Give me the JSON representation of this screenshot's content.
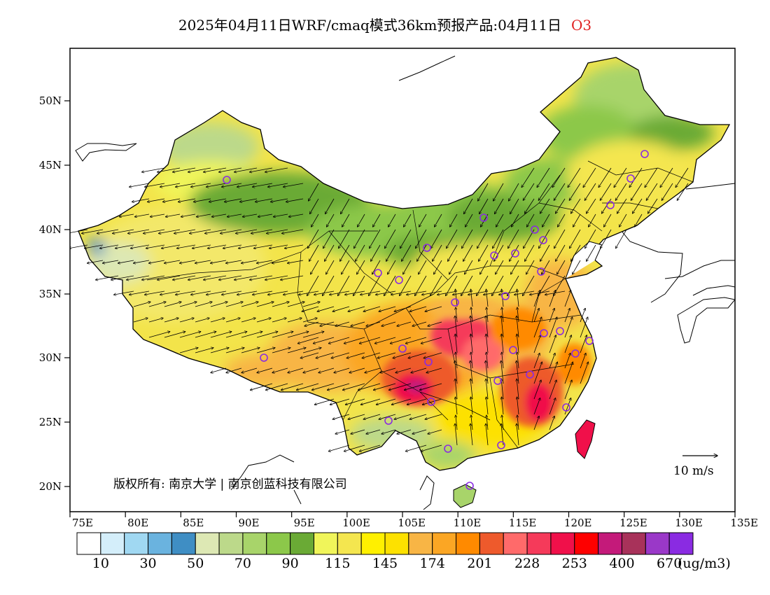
{
  "title": {
    "text": "2025年04月11日WRF/cmaq模式36km预报产品:04月11日",
    "species": "O3"
  },
  "map": {
    "lat_labels": [
      "50N",
      "45N",
      "40N",
      "35N",
      "30N",
      "25N",
      "20N"
    ],
    "lon_labels": [
      "75E",
      "80E",
      "85E",
      "90E",
      "95E",
      "100E",
      "105E",
      "110E",
      "115E",
      "120E",
      "125E",
      "130E",
      "135E"
    ],
    "lon_range": [
      75,
      135
    ],
    "lat_range": [
      18,
      54
    ],
    "copyright": "版权所有: 南京大学 | 南京创蓝科技有限公司",
    "wind_scale_label": "10 m/s",
    "station_marker_color": "#8a2be2",
    "arrow_color": "#000000"
  },
  "colorbar": {
    "colors": [
      "#ffffff",
      "#d4eefa",
      "#a0d8f2",
      "#6ab3df",
      "#3f8ec4",
      "#dde8b4",
      "#bcd98a",
      "#a8d46a",
      "#8cc84a",
      "#6aaa35",
      "#f0f55a",
      "#f4e64f",
      "#fff000",
      "#fde100",
      "#f8b545",
      "#fba624",
      "#ff8a00",
      "#ee5a2c",
      "#ff6a6a",
      "#f53a5a",
      "#f0104a",
      "#fe0000",
      "#c41a7a",
      "#a8325a",
      "#9a38c8",
      "#8a2be2"
    ],
    "labels": [
      "10",
      "30",
      "50",
      "70",
      "90",
      "115",
      "145",
      "174",
      "201",
      "228",
      "253",
      "400",
      "670"
    ],
    "unit": "(ug/m3)"
  }
}
